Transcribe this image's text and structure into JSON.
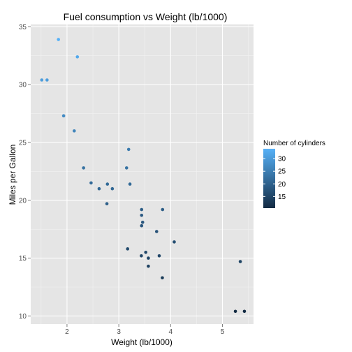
{
  "chart_data": {
    "type": "scatter",
    "title": "Fuel consumption vs Weight (lb/1000)",
    "xlabel": "Weight (lb/1000)",
    "ylabel": "Miles per Gallon",
    "xlim": [
      1.3,
      5.6
    ],
    "ylim": [
      9.3,
      35.2
    ],
    "x_ticks": [
      2,
      3,
      4,
      5
    ],
    "y_ticks": [
      10,
      15,
      20,
      25,
      30,
      35
    ],
    "grid": true,
    "background_color": "#e5e5e5",
    "grid_color": "#ffffff",
    "color_scale": {
      "title": "Number of cylinders",
      "low_color": "#132b43",
      "high_color": "#56b1f7",
      "range": [
        10.4,
        33.9
      ],
      "ticks": [
        15,
        20,
        25,
        30
      ],
      "position": "right"
    },
    "points": [
      {
        "x": 2.62,
        "y": 21.0
      },
      {
        "x": 2.875,
        "y": 21.0
      },
      {
        "x": 2.32,
        "y": 22.8
      },
      {
        "x": 3.215,
        "y": 21.4
      },
      {
        "x": 3.44,
        "y": 18.7
      },
      {
        "x": 3.46,
        "y": 18.1
      },
      {
        "x": 3.57,
        "y": 14.3
      },
      {
        "x": 3.19,
        "y": 24.4
      },
      {
        "x": 3.15,
        "y": 22.8
      },
      {
        "x": 3.44,
        "y": 19.2
      },
      {
        "x": 3.44,
        "y": 17.8
      },
      {
        "x": 4.07,
        "y": 16.4
      },
      {
        "x": 3.73,
        "y": 17.3
      },
      {
        "x": 3.78,
        "y": 15.2
      },
      {
        "x": 5.25,
        "y": 10.4
      },
      {
        "x": 5.424,
        "y": 10.4
      },
      {
        "x": 5.345,
        "y": 14.7
      },
      {
        "x": 2.2,
        "y": 32.4
      },
      {
        "x": 1.615,
        "y": 30.4
      },
      {
        "x": 1.835,
        "y": 33.9
      },
      {
        "x": 2.465,
        "y": 21.5
      },
      {
        "x": 3.52,
        "y": 15.5
      },
      {
        "x": 3.435,
        "y": 15.2
      },
      {
        "x": 3.84,
        "y": 13.3
      },
      {
        "x": 3.845,
        "y": 19.2
      },
      {
        "x": 1.935,
        "y": 27.3
      },
      {
        "x": 2.14,
        "y": 26.0
      },
      {
        "x": 1.513,
        "y": 30.4
      },
      {
        "x": 3.17,
        "y": 15.8
      },
      {
        "x": 2.77,
        "y": 19.7
      },
      {
        "x": 3.57,
        "y": 15.0
      },
      {
        "x": 2.78,
        "y": 21.4
      }
    ]
  }
}
